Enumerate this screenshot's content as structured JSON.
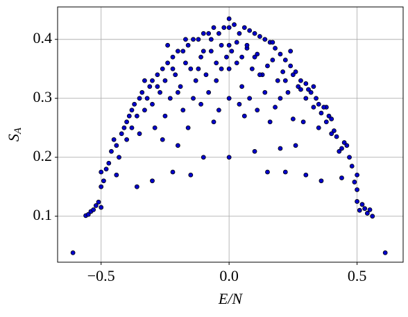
{
  "chart_data": {
    "type": "scatter",
    "xlabel": "E/N",
    "ylabel": "S",
    "ylabel_sub": "A",
    "xlim": [
      -0.67,
      0.68
    ],
    "ylim": [
      0.022,
      0.455
    ],
    "xticks": [
      {
        "value": -0.5,
        "label": "−0.5"
      },
      {
        "value": 0,
        "label": "0.0"
      },
      0.5
    ],
    "yticks": [
      0.1,
      0.2,
      0.3,
      0.4
    ],
    "grid": true,
    "series": [
      {
        "color": "#0000cc",
        "edgecolor": "#000000",
        "x": [
          -0.61,
          -0.56,
          -0.55,
          -0.54,
          -0.53,
          -0.52,
          -0.51,
          -0.5,
          -0.5,
          -0.5,
          -0.49,
          -0.48,
          -0.47,
          -0.46,
          -0.45,
          -0.44,
          -0.43,
          -0.42,
          -0.41,
          -0.4,
          -0.4,
          -0.39,
          -0.38,
          -0.38,
          -0.37,
          -0.36,
          -0.35,
          -0.35,
          -0.34,
          -0.33,
          -0.32,
          -0.31,
          -0.3,
          -0.3,
          -0.29,
          -0.28,
          -0.27,
          -0.26,
          -0.25,
          -0.24,
          -0.23,
          -0.22,
          -0.21,
          -0.2,
          -0.19,
          -0.18,
          -0.17,
          -0.16,
          -0.15,
          -0.14,
          -0.13,
          -0.12,
          -0.11,
          -0.1,
          -0.09,
          -0.08,
          -0.07,
          -0.06,
          -0.05,
          -0.04,
          -0.03,
          -0.02,
          -0.01,
          -0.44,
          -0.36,
          -0.3,
          -0.22,
          -0.15,
          -0.1,
          -0.2,
          -0.26,
          -0.16,
          -0.06,
          -0.11,
          -0.04,
          -0.25,
          -0.18,
          -0.08,
          -0.14,
          -0.2,
          -0.28,
          -0.12,
          -0.22,
          -0.05,
          -0.33,
          -0.24,
          -0.1,
          -0.17,
          -0.07,
          -0.03,
          0,
          0,
          0,
          0,
          0,
          0,
          0.61,
          0.56,
          0.55,
          0.54,
          0.53,
          0.52,
          0.51,
          0.5,
          0.5,
          0.5,
          0.49,
          0.48,
          0.47,
          0.46,
          0.45,
          0.44,
          0.43,
          0.42,
          0.41,
          0.4,
          0.4,
          0.39,
          0.38,
          0.38,
          0.37,
          0.36,
          0.35,
          0.35,
          0.34,
          0.33,
          0.32,
          0.31,
          0.3,
          0.3,
          0.29,
          0.28,
          0.27,
          0.26,
          0.25,
          0.24,
          0.23,
          0.22,
          0.21,
          0.2,
          0.19,
          0.18,
          0.17,
          0.16,
          0.15,
          0.14,
          0.13,
          0.12,
          0.11,
          0.1,
          0.09,
          0.08,
          0.07,
          0.06,
          0.05,
          0.04,
          0.03,
          0.02,
          0.01,
          0.44,
          0.36,
          0.3,
          0.22,
          0.15,
          0.1,
          0.2,
          0.26,
          0.16,
          0.06,
          0.11,
          0.04,
          0.25,
          0.18,
          0.08,
          0.14,
          0.2,
          0.28,
          0.12,
          0.22,
          0.05,
          0.33,
          0.24,
          0.1,
          0.17,
          0.07,
          0.03
        ],
        "values": [
          0.038,
          0.101,
          0.103,
          0.108,
          0.111,
          0.118,
          0.124,
          0.115,
          0.15,
          0.175,
          0.16,
          0.18,
          0.19,
          0.21,
          0.23,
          0.22,
          0.2,
          0.24,
          0.25,
          0.23,
          0.26,
          0.27,
          0.25,
          0.28,
          0.29,
          0.27,
          0.3,
          0.24,
          0.31,
          0.28,
          0.3,
          0.32,
          0.29,
          0.33,
          0.25,
          0.34,
          0.31,
          0.35,
          0.33,
          0.36,
          0.3,
          0.37,
          0.34,
          0.38,
          0.32,
          0.38,
          0.36,
          0.39,
          0.35,
          0.4,
          0.33,
          0.4,
          0.37,
          0.41,
          0.34,
          0.41,
          0.38,
          0.42,
          0.36,
          0.41,
          0.39,
          0.42,
          0.37,
          0.17,
          0.15,
          0.16,
          0.175,
          0.17,
          0.2,
          0.22,
          0.23,
          0.25,
          0.26,
          0.29,
          0.28,
          0.27,
          0.28,
          0.31,
          0.3,
          0.31,
          0.32,
          0.35,
          0.35,
          0.33,
          0.33,
          0.39,
          0.38,
          0.4,
          0.4,
          0.35,
          0.435,
          0.2,
          0.3,
          0.35,
          0.39,
          0.42,
          0.038,
          0.1,
          0.111,
          0.105,
          0.113,
          0.12,
          0.11,
          0.125,
          0.145,
          0.17,
          0.158,
          0.185,
          0.2,
          0.22,
          0.225,
          0.215,
          0.21,
          0.235,
          0.245,
          0.24,
          0.265,
          0.27,
          0.26,
          0.285,
          0.285,
          0.275,
          0.29,
          0.25,
          0.3,
          0.285,
          0.31,
          0.315,
          0.3,
          0.325,
          0.26,
          0.33,
          0.32,
          0.345,
          0.34,
          0.355,
          0.31,
          0.365,
          0.345,
          0.375,
          0.33,
          0.385,
          0.365,
          0.395,
          0.355,
          0.4,
          0.34,
          0.405,
          0.375,
          0.41,
          0.35,
          0.415,
          0.385,
          0.42,
          0.37,
          0.41,
          0.395,
          0.425,
          0.38,
          0.165,
          0.16,
          0.17,
          0.175,
          0.175,
          0.21,
          0.215,
          0.22,
          0.26,
          0.27,
          0.28,
          0.29,
          0.265,
          0.285,
          0.3,
          0.31,
          0.3,
          0.315,
          0.34,
          0.33,
          0.32,
          0.32,
          0.38,
          0.37,
          0.395,
          0.39,
          0.36
        ]
      }
    ]
  }
}
